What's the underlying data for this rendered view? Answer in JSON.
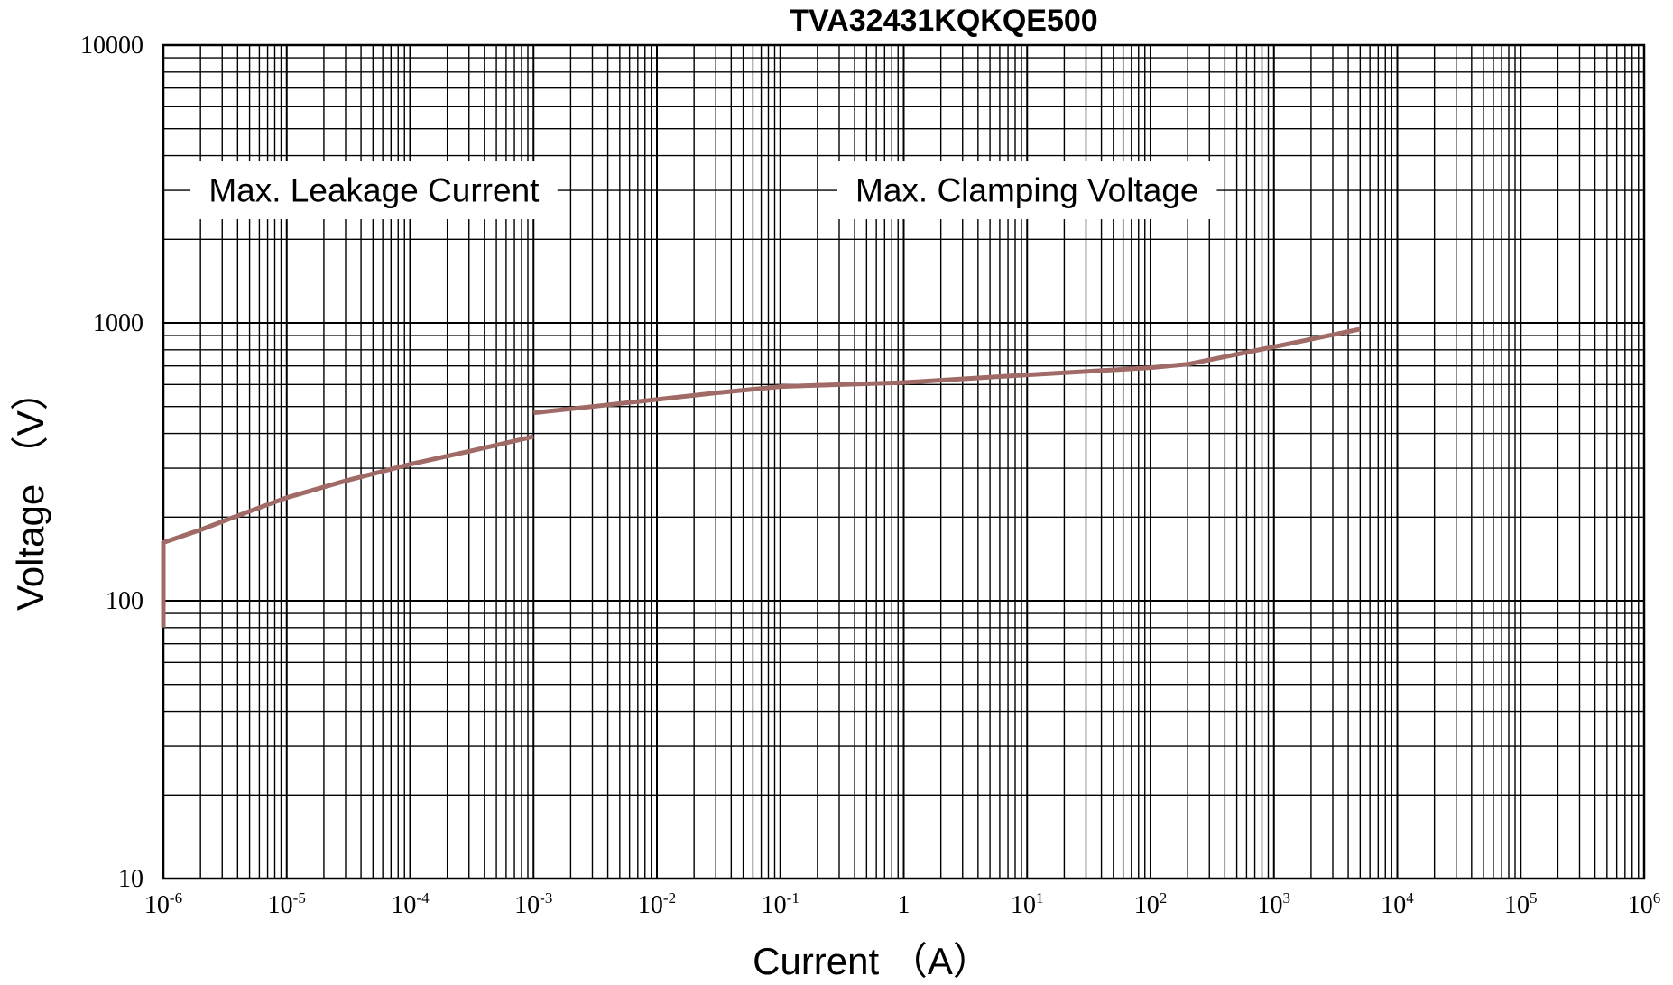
{
  "chart_data": {
    "type": "line",
    "title": "TVA32431KQKQE500",
    "xlabel": "Current （A）",
    "ylabel": "Voltage  （V）",
    "x_scale": "log",
    "y_scale": "log",
    "xlim": [
      1e-06,
      1000000
    ],
    "ylim": [
      10,
      10000
    ],
    "grid": true,
    "x_ticks": [
      {
        "value": 1e-06,
        "base": "10",
        "exp": "-6"
      },
      {
        "value": 1e-05,
        "base": "10",
        "exp": "-5"
      },
      {
        "value": 0.0001,
        "base": "10",
        "exp": "-4"
      },
      {
        "value": 0.001,
        "base": "10",
        "exp": "-3"
      },
      {
        "value": 0.01,
        "base": "10",
        "exp": "-2"
      },
      {
        "value": 0.1,
        "base": "10",
        "exp": "-1"
      },
      {
        "value": 1,
        "base": "1",
        "exp": ""
      },
      {
        "value": 10,
        "base": "10",
        "exp": "1"
      },
      {
        "value": 100,
        "base": "10",
        "exp": "2"
      },
      {
        "value": 1000,
        "base": "10",
        "exp": "3"
      },
      {
        "value": 10000,
        "base": "10",
        "exp": "4"
      },
      {
        "value": 100000,
        "base": "10",
        "exp": "5"
      },
      {
        "value": 1000000,
        "base": "10",
        "exp": "6"
      }
    ],
    "y_ticks": [
      {
        "value": 10,
        "label": "10"
      },
      {
        "value": 100,
        "label": "100"
      },
      {
        "value": 1000,
        "label": "1000"
      },
      {
        "value": 10000,
        "label": "10000"
      }
    ],
    "annotations": [
      {
        "text": "Max. Leakage Current",
        "x": 3e-05,
        "y": 3000
      },
      {
        "text": "Max.  Clamping  Voltage",
        "x": 10,
        "y": 3000
      }
    ],
    "series": [
      {
        "segment": "leakage",
        "color": "#a06a66",
        "x": [
          1e-06,
          1e-06,
          2e-06,
          5e-06,
          1e-05,
          3e-05,
          0.0001,
          0.0003,
          0.001
        ],
        "y": [
          80,
          162,
          180,
          210,
          235,
          270,
          310,
          345,
          390
        ]
      },
      {
        "segment": "clamping",
        "color": "#a06a66",
        "x": [
          0.001,
          0.003,
          0.01,
          0.03,
          0.1,
          1,
          10,
          100,
          200,
          1000,
          5000
        ],
        "y": [
          475,
          500,
          530,
          560,
          590,
          610,
          650,
          690,
          710,
          820,
          950
        ]
      }
    ]
  }
}
